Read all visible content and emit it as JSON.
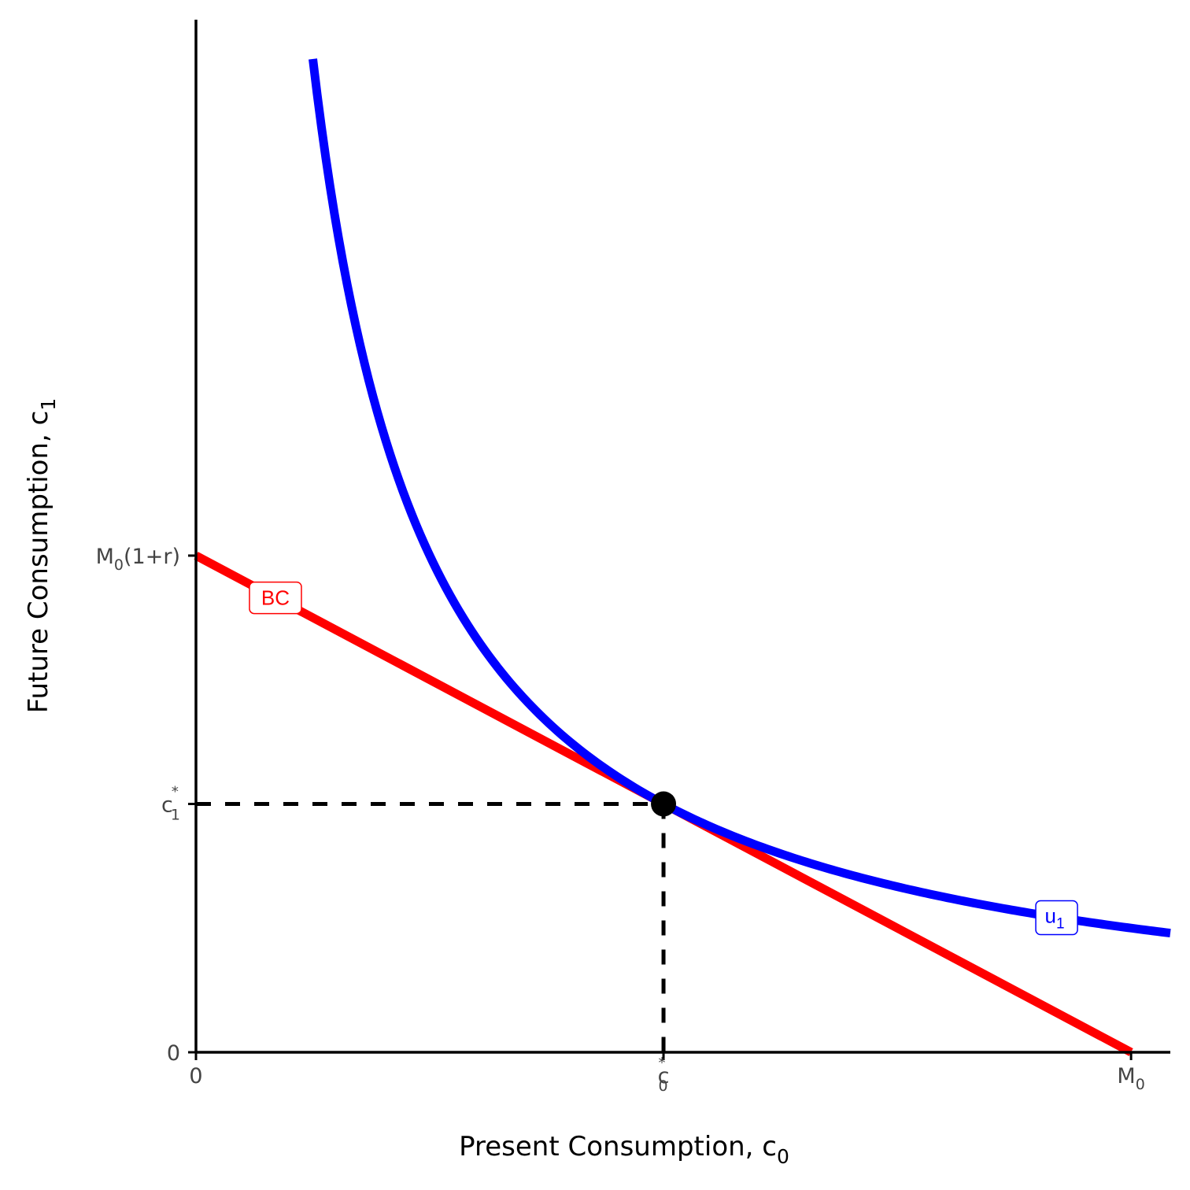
{
  "chart_data": {
    "type": "line",
    "title": "",
    "xlabel": "Present Consumption, c",
    "xlabel_sub": "0",
    "ylabel": "Future Consumption, c",
    "ylabel_sub": "1",
    "xlim": [
      0,
      10.42
    ],
    "ylim": [
      0,
      11.04
    ],
    "grid": false,
    "x_ticks": [
      {
        "value": 0,
        "label": "0",
        "sub": "",
        "sup": ""
      },
      {
        "value": 5,
        "label": "c",
        "sub": "0",
        "sup": "*"
      },
      {
        "value": 10,
        "label": "M",
        "sub": "0",
        "sup": ""
      }
    ],
    "y_ticks": [
      {
        "value": 0,
        "label": "0",
        "sub": "",
        "sup": "",
        "suffix": ""
      },
      {
        "value": 2.655,
        "label": "c",
        "sub": "1",
        "sup": "*",
        "suffix": ""
      },
      {
        "value": 5.31,
        "label": "M",
        "sub": "0",
        "sup": "",
        "suffix": "(1+r)"
      }
    ],
    "series": [
      {
        "name": "BC",
        "kind": "budget-line",
        "color": "#ff0000",
        "x": [
          0,
          10
        ],
        "y": [
          5.31,
          0
        ],
        "label": "BC",
        "label_at_x": 0.85
      },
      {
        "name": "u1",
        "kind": "indifference-curve",
        "color": "#0000ff",
        "utility": 13.275,
        "x_range": [
          1.25,
          10.42
        ],
        "label": "u",
        "label_sub": "1",
        "label_at_x": 9.2
      }
    ],
    "optimum": {
      "x": 5,
      "y": 2.655,
      "color": "#000000"
    },
    "guide_lines": {
      "style": "dashed",
      "color": "#000000"
    }
  }
}
